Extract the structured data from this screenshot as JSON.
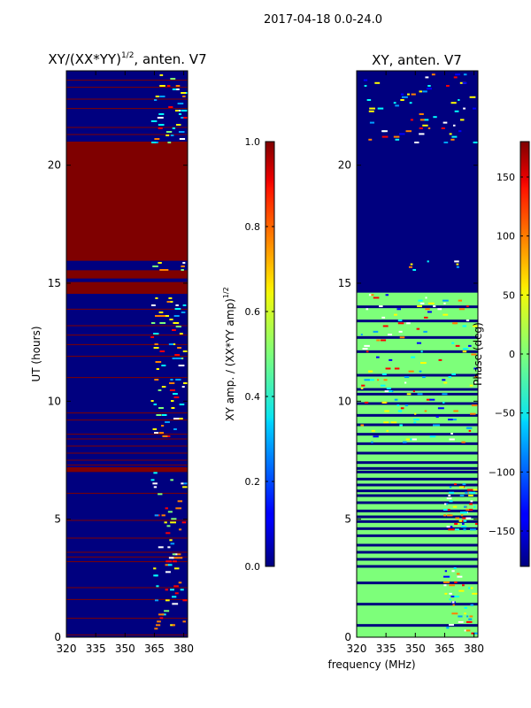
{
  "suptitle": "2017-04-18 0.0-24.0",
  "colors": {
    "background": "#00007f",
    "saturated": "#7f0000",
    "phase_fill": "#7dff7a",
    "frame": "#000000"
  },
  "chart_data": [
    {
      "type": "heatmap",
      "title_main": "XY/(XX*YY)",
      "title_sup": "1/2",
      "title_suffix": ", anten. V7",
      "xlabel": "",
      "ylabel": "UT (hours)",
      "xlim": [
        320,
        382
      ],
      "ylim": [
        0,
        24
      ],
      "xticks": [
        "320",
        "335",
        "350",
        "365",
        "380"
      ],
      "yticks": [
        "0",
        "5",
        "10",
        "15",
        "20"
      ],
      "colorbar": {
        "label_main": "XY amp. / (XX*YY amp)",
        "label_sup": "1/2",
        "range": [
          0.0,
          1.0
        ],
        "ticks": [
          "0.0",
          "0.2",
          "0.4",
          "0.6",
          "0.8",
          "1.0"
        ],
        "colormap": "jet"
      },
      "bands": [
        {
          "from": 15.95,
          "to": 21.0,
          "value": 1.0
        },
        {
          "from": 15.2,
          "to": 15.55,
          "value": 1.0
        },
        {
          "from": 14.55,
          "to": 15.05,
          "value": 1.0
        },
        {
          "from": 7.0,
          "to": 7.2,
          "value": 1.0
        }
      ],
      "lines": [
        0.1,
        0.8,
        1.6,
        2.1,
        3.2,
        3.4,
        3.6,
        4.2,
        4.95,
        6.1,
        7.3,
        7.5,
        7.8,
        8.1,
        8.4,
        8.6,
        9.2,
        9.5,
        11.0,
        11.9,
        12.4,
        12.8,
        13.2,
        13.9,
        21.3,
        21.6,
        22.4,
        22.8,
        23.3,
        23.6
      ]
    },
    {
      "type": "heatmap",
      "title_main": "XY, anten. V7",
      "xlabel": "frequency (MHz)",
      "ylabel": "",
      "xlim": [
        320,
        382
      ],
      "ylim": [
        0,
        24
      ],
      "xticks": [
        "320",
        "335",
        "350",
        "365",
        "380"
      ],
      "yticks": [
        "0",
        "5",
        "10",
        "15",
        "20"
      ],
      "colorbar": {
        "label_main": "Phase (deg)",
        "range": [
          -180,
          180
        ],
        "ticks": [
          "−150",
          "−100",
          "−50",
          "0",
          "50",
          "100",
          "150"
        ],
        "tick_values": [
          -150,
          -100,
          -50,
          0,
          50,
          100,
          150
        ],
        "colormap": "jet"
      },
      "navy_regions": [
        {
          "from": 16.0,
          "to": 21.0
        },
        {
          "from": 21.0,
          "to": 24.0
        },
        {
          "from": 14.6,
          "to": 15.95
        }
      ],
      "green_region": [
        0.0,
        14.6
      ],
      "dark_lines": [
        0.5,
        1.4,
        2.3,
        3.0,
        3.3,
        3.6,
        3.9,
        4.3,
        4.6,
        4.9,
        5.1,
        5.35,
        5.7,
        6.0,
        6.2,
        6.45,
        6.7,
        7.0,
        7.15,
        7.4,
        7.8,
        8.2,
        8.6,
        9.0,
        9.4,
        9.9,
        10.3,
        10.5,
        11.1,
        12.1,
        12.7,
        13.4,
        14.0
      ]
    }
  ]
}
